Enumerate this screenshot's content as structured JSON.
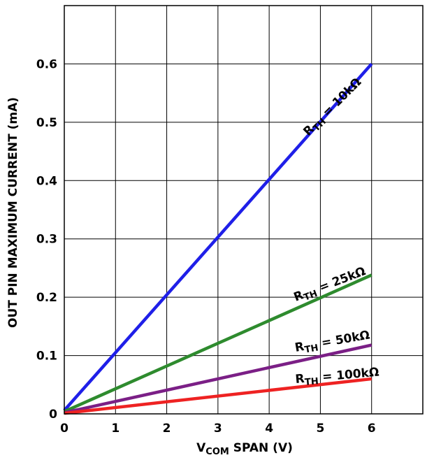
{
  "chart_data": {
    "type": "line",
    "xlabel": {
      "main": "V",
      "sub": "COM",
      "rest": " SPAN (V)"
    },
    "ylabel": "OUT PIN MAXIMUM CURRENT (mA)",
    "xlim": [
      0,
      7
    ],
    "ylim": [
      0,
      0.7
    ],
    "x_ticks": [
      "0",
      "1",
      "2",
      "3",
      "4",
      "5",
      "6"
    ],
    "y_ticks": [
      "0",
      "0.1",
      "0.2",
      "0.3",
      "0.4",
      "0.5",
      "0.6"
    ],
    "grid": true,
    "series": [
      {
        "name": {
          "main": "R",
          "sub": "TH",
          "rest": " = 10kΩ"
        },
        "color": "#1f1fe8",
        "x": [
          0,
          6
        ],
        "y": [
          0.006,
          0.6
        ]
      },
      {
        "name": {
          "main": "R",
          "sub": "TH",
          "rest": " = 25kΩ"
        },
        "color": "#2e8b2e",
        "x": [
          0,
          6
        ],
        "y": [
          0.004,
          0.238
        ]
      },
      {
        "name": {
          "main": "R",
          "sub": "TH",
          "rest": " = 50kΩ"
        },
        "color": "#7b1f86",
        "x": [
          0,
          6
        ],
        "y": [
          0.002,
          0.118
        ]
      },
      {
        "name": {
          "main": "R",
          "sub": "TH",
          "rest": " = 100kΩ"
        },
        "color": "#ee2222",
        "x": [
          0,
          6
        ],
        "y": [
          0.001,
          0.06
        ]
      }
    ]
  }
}
